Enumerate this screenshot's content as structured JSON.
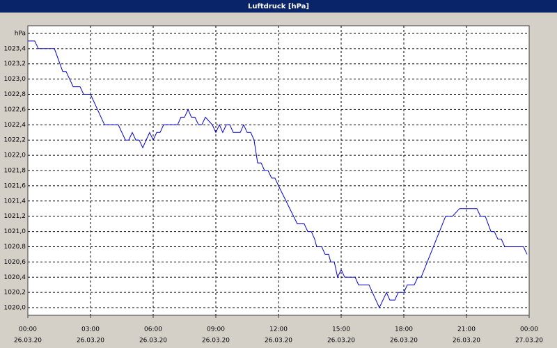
{
  "chart_data": {
    "type": "line",
    "title": "Luftdruck [hPa]",
    "series": [
      {
        "name": "Luftdruck",
        "color": "#0000c8",
        "x": [
          0,
          0.33,
          0.5,
          1.27,
          1.67,
          1.83,
          2.17,
          2.5,
          2.67,
          3.0,
          3.67,
          4.33,
          4.67,
          4.83,
          5.0,
          5.17,
          5.33,
          5.5,
          5.83,
          6.0,
          6.17,
          6.33,
          6.5,
          7.17,
          7.33,
          7.5,
          7.67,
          7.83,
          8.0,
          8.17,
          8.33,
          8.5,
          8.83,
          9.0,
          9.17,
          9.33,
          9.5,
          9.67,
          9.83,
          10.17,
          10.33,
          10.5,
          10.67,
          10.83,
          11.0,
          11.17,
          11.33,
          11.5,
          11.67,
          11.83,
          12.0,
          12.9,
          13.23,
          13.4,
          13.57,
          13.73,
          13.83,
          14.07,
          14.23,
          14.4,
          14.5,
          14.67,
          14.83,
          15.0,
          15.17,
          15.67,
          15.83,
          16.33,
          16.83,
          17.17,
          17.33,
          17.57,
          17.73,
          18.0,
          18.17,
          18.5,
          18.67,
          18.83,
          20.0,
          20.33,
          20.67,
          21.5,
          21.67,
          21.9,
          22.17,
          22.33,
          22.5,
          22.67,
          22.83,
          23.73,
          23.9
        ],
        "values": [
          1023.5,
          1023.5,
          1023.4,
          1023.4,
          1023.1,
          1023.1,
          1022.9,
          1022.9,
          1022.8,
          1022.8,
          1022.4,
          1022.4,
          1022.2,
          1022.2,
          1022.3,
          1022.2,
          1022.2,
          1022.1,
          1022.3,
          1022.2,
          1022.3,
          1022.3,
          1022.4,
          1022.4,
          1022.5,
          1022.5,
          1022.6,
          1022.5,
          1022.5,
          1022.4,
          1022.4,
          1022.5,
          1022.4,
          1022.3,
          1022.4,
          1022.3,
          1022.4,
          1022.4,
          1022.3,
          1022.3,
          1022.4,
          1022.3,
          1022.3,
          1022.2,
          1021.9,
          1021.9,
          1021.8,
          1021.8,
          1021.7,
          1021.7,
          1021.6,
          1021.1,
          1021.1,
          1021.0,
          1021.0,
          1020.9,
          1020.8,
          1020.8,
          1020.7,
          1020.7,
          1020.6,
          1020.6,
          1020.4,
          1020.5,
          1020.4,
          1020.4,
          1020.3,
          1020.3,
          1020.0,
          1020.2,
          1020.1,
          1020.1,
          1020.2,
          1020.2,
          1020.3,
          1020.3,
          1020.4,
          1020.4,
          1021.2,
          1021.2,
          1021.3,
          1021.3,
          1021.2,
          1021.2,
          1021.0,
          1021.0,
          1020.9,
          1020.9,
          1020.8,
          1020.8,
          1020.7
        ]
      }
    ],
    "xlim": [
      0,
      24
    ],
    "xticks": [
      {
        "value": 0,
        "label": "00:00",
        "sublabel": "26.03.20"
      },
      {
        "value": 3,
        "label": "03:00",
        "sublabel": "26.03.20"
      },
      {
        "value": 6,
        "label": "06:00",
        "sublabel": "26.03.20"
      },
      {
        "value": 9,
        "label": "09:00",
        "sublabel": "26.03.20"
      },
      {
        "value": 12,
        "label": "12:00",
        "sublabel": "26.03.20"
      },
      {
        "value": 15,
        "label": "15:00",
        "sublabel": "26.03.20"
      },
      {
        "value": 18,
        "label": "18:00",
        "sublabel": "26.03.20"
      },
      {
        "value": 21,
        "label": "21:00",
        "sublabel": "26.03.20"
      },
      {
        "value": 24,
        "label": "00:00",
        "sublabel": "27.03.20"
      }
    ],
    "ylim": [
      1019.9,
      1023.7
    ],
    "yticks": [
      {
        "value": 1020.0,
        "label": "1020,0"
      },
      {
        "value": 1020.2,
        "label": "1020,2"
      },
      {
        "value": 1020.4,
        "label": "1020,4"
      },
      {
        "value": 1020.6,
        "label": "1020,6"
      },
      {
        "value": 1020.8,
        "label": "1020,8"
      },
      {
        "value": 1021.0,
        "label": "1021,0"
      },
      {
        "value": 1021.2,
        "label": "1021,2"
      },
      {
        "value": 1021.4,
        "label": "1021,4"
      },
      {
        "value": 1021.6,
        "label": "1021,6"
      },
      {
        "value": 1021.8,
        "label": "1021,8"
      },
      {
        "value": 1022.0,
        "label": "1022,0"
      },
      {
        "value": 1022.2,
        "label": "1022,2"
      },
      {
        "value": 1022.4,
        "label": "1022,4"
      },
      {
        "value": 1022.6,
        "label": "1022,6"
      },
      {
        "value": 1022.8,
        "label": "1022,8"
      },
      {
        "value": 1023.0,
        "label": "1023,0"
      },
      {
        "value": 1023.2,
        "label": "1023,2"
      },
      {
        "value": 1023.4,
        "label": "1023,4"
      },
      {
        "value": 1023.6,
        "label": "hPa"
      }
    ],
    "grid": true
  }
}
